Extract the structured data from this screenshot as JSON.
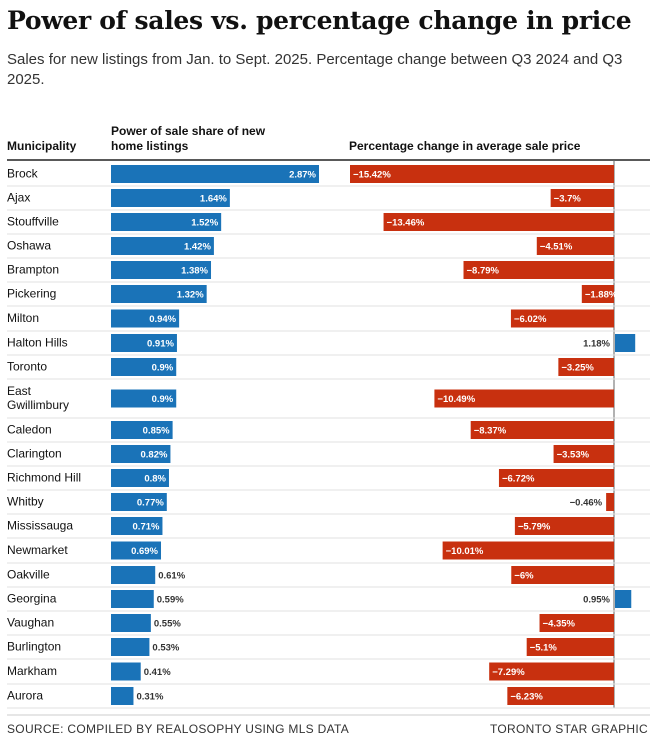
{
  "title": "Power of sales vs. percentage change in price",
  "subtitle": "Sales for new listings from Jan. to Sept. 2025. Percentage change between Q3 2024 and Q3 2025.",
  "source": "SOURCE: COMPILED BY REALOSOPHY USING MLS DATA",
  "credit": "TORONTO STAR GRAPHIC",
  "colors": {
    "share": "#1a73b8",
    "negative": "#c8300f",
    "positive": "#1a73b8"
  },
  "chart_data": {
    "type": "bar",
    "columns": {
      "municipality": "Municipality",
      "share": "Power of sale share of new home listings",
      "change": "Percentage change in average sale price"
    },
    "categories": [
      "Brock",
      "Ajax",
      "Stouffville",
      "Oshawa",
      "Brampton",
      "Pickering",
      "Milton",
      "Halton Hills",
      "Toronto",
      "East Gwillimbury",
      "Caledon",
      "Clarington",
      "Richmond Hill",
      "Whitby",
      "Mississauga",
      "Newmarket",
      "Oakville",
      "Georgina",
      "Vaughan",
      "Burlington",
      "Markham",
      "Aurora"
    ],
    "category_lines": [
      [
        "Brock"
      ],
      [
        "Ajax"
      ],
      [
        "Stouffville"
      ],
      [
        "Oshawa"
      ],
      [
        "Brampton"
      ],
      [
        "Pickering"
      ],
      [
        "Milton"
      ],
      [
        "Halton Hills"
      ],
      [
        "Toronto"
      ],
      [
        "East",
        "Gwillimbury"
      ],
      [
        "Caledon"
      ],
      [
        "Clarington"
      ],
      [
        "Richmond Hill"
      ],
      [
        "Whitby"
      ],
      [
        "Mississauga"
      ],
      [
        "Newmarket"
      ],
      [
        "Oakville"
      ],
      [
        "Georgina"
      ],
      [
        "Vaughan"
      ],
      [
        "Burlington"
      ],
      [
        "Markham"
      ],
      [
        "Aurora"
      ]
    ],
    "series": [
      {
        "name": "Power of sale share of new home listings",
        "values": [
          2.87,
          1.64,
          1.52,
          1.42,
          1.38,
          1.32,
          0.94,
          0.91,
          0.9,
          0.9,
          0.85,
          0.82,
          0.8,
          0.77,
          0.71,
          0.69,
          0.61,
          0.59,
          0.55,
          0.53,
          0.41,
          0.31
        ],
        "labels": [
          "2.87%",
          "1.64%",
          "1.52%",
          "1.42%",
          "1.38%",
          "1.32%",
          "0.94%",
          "0.91%",
          "0.9%",
          "0.9%",
          "0.85%",
          "0.82%",
          "0.8%",
          "0.77%",
          "0.71%",
          "0.69%",
          "0.61%",
          "0.59%",
          "0.55%",
          "0.53%",
          "0.41%",
          "0.31%"
        ]
      },
      {
        "name": "Percentage change in average sale price",
        "values": [
          -15.42,
          -3.7,
          -13.46,
          -4.51,
          -8.79,
          -1.88,
          -6.02,
          1.18,
          -3.25,
          -10.49,
          -8.37,
          -3.53,
          -6.72,
          -0.46,
          -5.79,
          -10.01,
          -6,
          0.95,
          -4.35,
          -5.1,
          -7.29,
          -6.23
        ],
        "labels": [
          "−15.42%",
          "−3.7%",
          "−13.46%",
          "−4.51%",
          "−8.79%",
          "−1.88%",
          "−6.02%",
          "1.18%",
          "−3.25%",
          "−10.49%",
          "−8.37%",
          "−3.53%",
          "−6.72%",
          "−0.46%",
          "−5.79%",
          "−10.01%",
          "−6%",
          "0.95%",
          "−4.35%",
          "−5.1%",
          "−7.29%",
          "−6.23%"
        ]
      }
    ],
    "share_range": [
      0,
      2.87
    ],
    "change_range": [
      -15.42,
      1.18
    ]
  }
}
